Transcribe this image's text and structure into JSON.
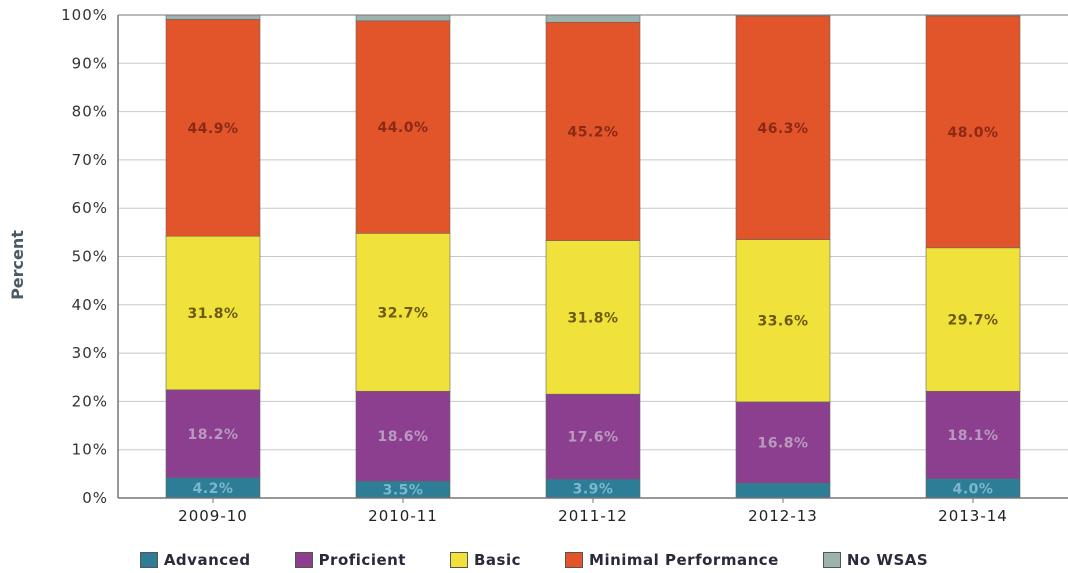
{
  "chart_data": {
    "type": "bar",
    "stacked": true,
    "ylabel": "Percent",
    "ylim": [
      0,
      100
    ],
    "yticks": [
      "0%",
      "10%",
      "20%",
      "30%",
      "40%",
      "50%",
      "60%",
      "70%",
      "80%",
      "90%",
      "100%"
    ],
    "categories": [
      "2009-10",
      "2010-11",
      "2011-12",
      "2012-13",
      "2013-14"
    ],
    "grid": true,
    "legend_position": "bottom",
    "series": [
      {
        "name": "Advanced",
        "color": "#2e7d96",
        "values": [
          4.2,
          3.5,
          3.9,
          3.1,
          4.0
        ],
        "labels": [
          "4.2%",
          "3.5%",
          "3.9%",
          "",
          "4.0%"
        ]
      },
      {
        "name": "Proficient",
        "color": "#8b3f8e",
        "values": [
          18.2,
          18.6,
          17.6,
          16.8,
          18.1
        ],
        "labels": [
          "18.2%",
          "18.6%",
          "17.6%",
          "16.8%",
          "18.1%"
        ]
      },
      {
        "name": "Basic",
        "color": "#f0e23a",
        "values": [
          31.8,
          32.7,
          31.8,
          33.6,
          29.7
        ],
        "labels": [
          "31.8%",
          "32.7%",
          "31.8%",
          "33.6%",
          "29.7%"
        ]
      },
      {
        "name": "Minimal Performance",
        "color": "#e2552a",
        "values": [
          44.9,
          44.0,
          45.2,
          46.3,
          48.0
        ],
        "labels": [
          "44.9%",
          "44.0%",
          "45.2%",
          "46.3%",
          "48.0%"
        ]
      },
      {
        "name": "No WSAS",
        "color": "#9db3b0",
        "values": [
          0.9,
          1.2,
          1.5,
          0.2,
          0.2
        ],
        "labels": [
          "",
          "",
          "",
          "",
          ""
        ]
      }
    ]
  }
}
